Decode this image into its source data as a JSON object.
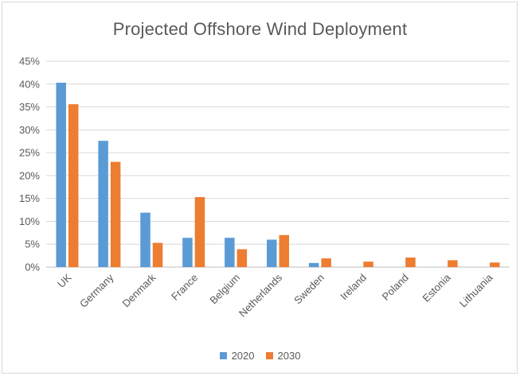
{
  "chart_data": {
    "type": "bar",
    "title": "Projected Offshore Wind Deployment",
    "categories": [
      "UK",
      "Germany",
      "Denmark",
      "France",
      "Belgium",
      "Netherlands",
      "Sweden",
      "Ireland",
      "Poland",
      "Estonia",
      "Lithuania"
    ],
    "series": [
      {
        "name": "2020",
        "color": "#5b9bd5",
        "values": [
          40.3,
          27.6,
          11.9,
          6.4,
          6.4,
          6.0,
          0.9,
          0.0,
          0.0,
          0.0,
          0.0
        ]
      },
      {
        "name": "2030",
        "color": "#ed7d31",
        "values": [
          35.6,
          23.0,
          5.3,
          15.3,
          3.9,
          7.0,
          1.9,
          1.2,
          2.1,
          1.5,
          1.0
        ]
      }
    ],
    "ylim": [
      0,
      45
    ],
    "yticks": [
      "0%",
      "5%",
      "10%",
      "15%",
      "20%",
      "25%",
      "30%",
      "35%",
      "40%",
      "45%"
    ],
    "xlabel": "",
    "ylabel": "",
    "grid": true,
    "legend_position": "bottom"
  }
}
